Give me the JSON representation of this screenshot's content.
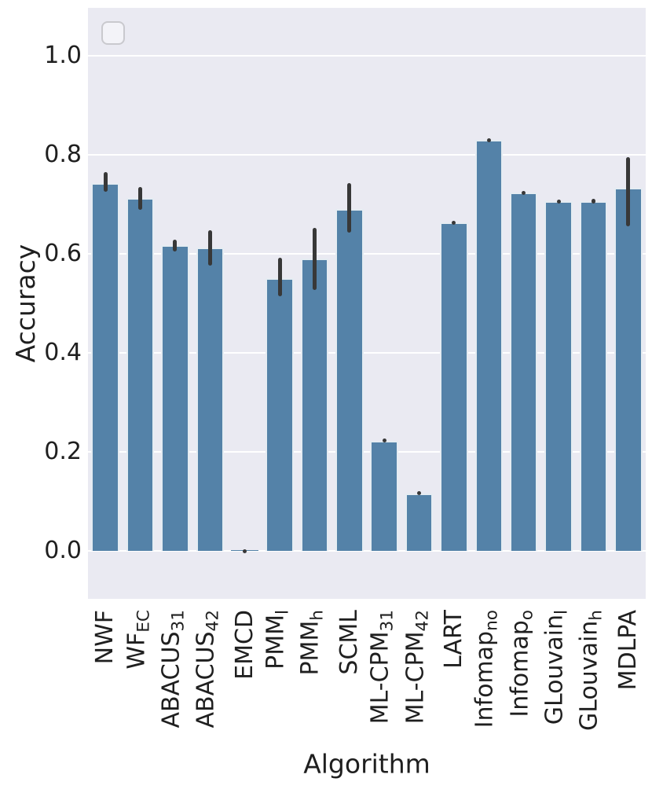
{
  "figure": {
    "background": "#ffffff",
    "panel_background": "#eaeaf2",
    "grid_color": "#ffffff",
    "bar_color": "#5482a8",
    "bar_edge_color": "#ffffff",
    "error_bar_color": "#383838",
    "text_color": "#1f1f1f",
    "legend": {
      "present": true,
      "content": ""
    }
  },
  "chart_data": {
    "type": "bar",
    "title": "",
    "xlabel": "Algorithm",
    "ylabel": "Accuracy",
    "ylim": [
      -0.097,
      1.097
    ],
    "grid": true,
    "legend_position": "upper-left-empty-box",
    "yticks": [
      {
        "value": 1.0,
        "label": "1.0"
      },
      {
        "value": 0.8,
        "label": "0.8"
      },
      {
        "value": 0.6,
        "label": "0.6"
      },
      {
        "value": 0.4,
        "label": "0.4"
      },
      {
        "value": 0.2,
        "label": "0.2"
      },
      {
        "value": 0.0,
        "label": "0.0"
      }
    ],
    "categories": [
      {
        "main": "NWF",
        "sub": ""
      },
      {
        "main": "WF",
        "sub": "EC"
      },
      {
        "main": "ABACUS",
        "sub": "31"
      },
      {
        "main": "ABACUS",
        "sub": "42"
      },
      {
        "main": "EMCD",
        "sub": ""
      },
      {
        "main": "PMM",
        "sub": "l"
      },
      {
        "main": "PMM",
        "sub": "h"
      },
      {
        "main": "SCML",
        "sub": ""
      },
      {
        "main": "ML-CPM",
        "sub": "31"
      },
      {
        "main": "ML-CPM",
        "sub": "42"
      },
      {
        "main": "LART",
        "sub": ""
      },
      {
        "main": "Infomap",
        "sub": "no"
      },
      {
        "main": "Infomap",
        "sub": "o"
      },
      {
        "main": "GLouvain",
        "sub": "l"
      },
      {
        "main": "GLouvain",
        "sub": "h"
      },
      {
        "main": "MDLPA",
        "sub": ""
      }
    ],
    "values": [
      0.743,
      0.713,
      0.617,
      0.613,
      0.001,
      0.551,
      0.59,
      0.69,
      0.222,
      0.116,
      0.663,
      0.83,
      0.724,
      0.706,
      0.707,
      0.733
    ],
    "error_low": [
      0.725,
      0.689,
      0.605,
      0.576,
      0.0,
      0.514,
      0.527,
      0.643,
      0.219,
      0.112,
      0.659,
      0.826,
      0.719,
      0.701,
      0.702,
      0.656
    ],
    "error_high": [
      0.765,
      0.735,
      0.629,
      0.648,
      0.003,
      0.592,
      0.652,
      0.743,
      0.227,
      0.12,
      0.667,
      0.834,
      0.727,
      0.71,
      0.711,
      0.795
    ]
  }
}
